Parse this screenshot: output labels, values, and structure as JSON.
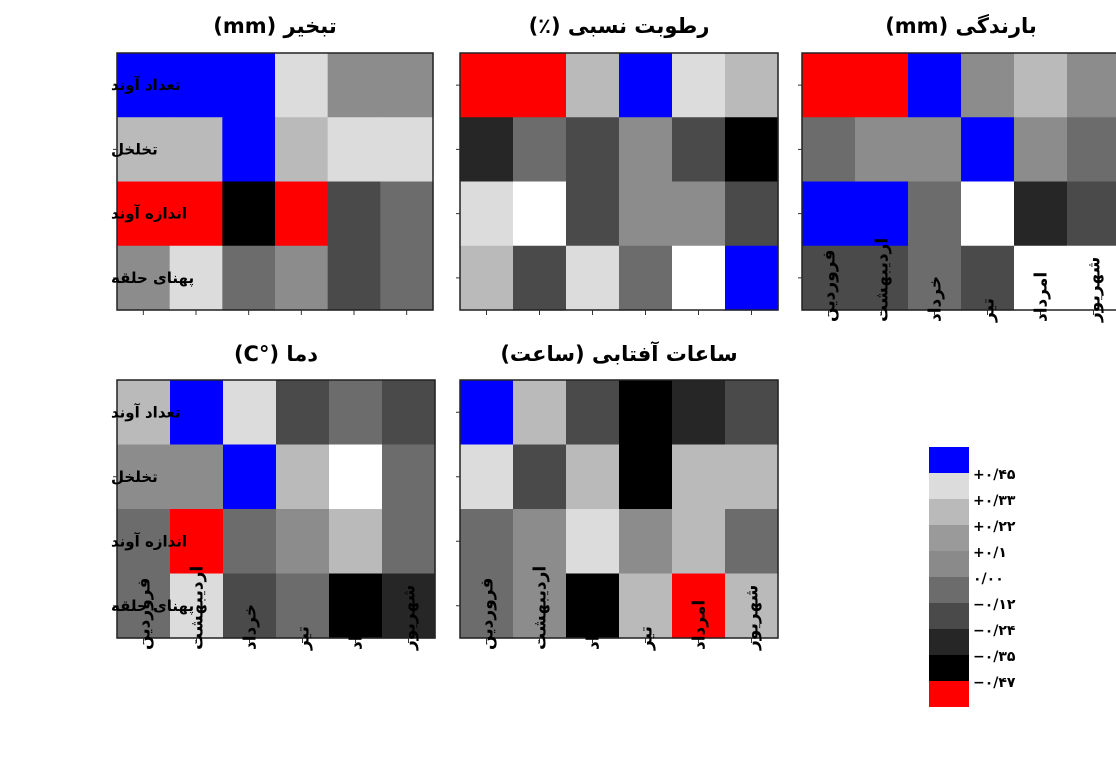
{
  "chart_data": [
    {
      "type": "heatmap",
      "title": "تبخیر (mm)",
      "rows": [
        "تعداد آوند",
        "تخلخل",
        "اندازه آوند",
        "پهنای حلقه"
      ],
      "columns": [
        "فروردین",
        "اردیبهشت",
        "خرداد",
        "تیر",
        "امرداد",
        "شهریور"
      ],
      "values": [
        [
          0.45,
          0.45,
          0.45,
          0.33,
          0.0,
          0.0
        ],
        [
          0.22,
          0.22,
          0.45,
          0.22,
          0.33,
          0.33
        ],
        [
          -0.47,
          -0.47,
          -0.35,
          -0.47,
          -0.24,
          -0.12
        ],
        [
          0.0,
          0.33,
          -0.12,
          0.0,
          -0.24,
          -0.12
        ]
      ]
    },
    {
      "type": "heatmap",
      "title": "رطوبت نسبی (٪)",
      "rows": [
        "تعداد آوند",
        "تخلخل",
        "اندازه آوند",
        "پهنای حلقه"
      ],
      "columns": [
        "فروردین",
        "اردیبهشت",
        "خرداد",
        "تیر",
        "امرداد",
        "شهریور"
      ],
      "values": [
        [
          -0.47,
          -0.47,
          0.22,
          0.45,
          0.33,
          0.22
        ],
        [
          -0.35,
          -0.12,
          -0.24,
          0.0,
          -0.24,
          -0.35
        ],
        [
          0.33,
          0.45,
          -0.24,
          0.0,
          0.0,
          -0.24
        ],
        [
          0.22,
          -0.24,
          0.33,
          -0.12,
          0.45,
          0.45
        ]
      ]
    },
    {
      "type": "heatmap",
      "title": "بارندگی (mm)",
      "rows": [
        "تعداد آوند",
        "تخلخل",
        "اندازه آوند",
        "پهنای حلقه"
      ],
      "columns": [
        "فروردین",
        "اردیبهشت",
        "خرداد",
        "تیر",
        "امرداد",
        "شهریور"
      ],
      "values": [
        [
          -0.47,
          -0.47,
          0.45,
          0.0,
          0.22,
          0.0
        ],
        [
          -0.12,
          0.0,
          0.0,
          0.45,
          0.0,
          -0.12
        ],
        [
          0.45,
          0.45,
          -0.12,
          0.45,
          -0.35,
          -0.24
        ],
        [
          -0.24,
          -0.24,
          -0.12,
          -0.24,
          0.45,
          0.45
        ]
      ]
    },
    {
      "type": "heatmap",
      "title": "دما (°C)",
      "rows": [
        "تعداد آوند",
        "تخلخل",
        "اندازه آوند",
        "پهنای حلقه"
      ],
      "columns": [
        "فروردین",
        "اردیبهشت",
        "خرداد",
        "تیر",
        "امرداد",
        "شهریور"
      ],
      "values": [
        [
          0.22,
          0.45,
          0.33,
          -0.24,
          -0.12,
          -0.24
        ],
        [
          0.0,
          0.0,
          0.45,
          0.22,
          0.45,
          -0.12
        ],
        [
          -0.12,
          -0.47,
          -0.12,
          0.0,
          0.22,
          -0.12
        ],
        [
          -0.12,
          0.33,
          -0.24,
          -0.12,
          -0.35,
          -0.35
        ]
      ]
    },
    {
      "type": "heatmap",
      "title": "ساعات آفتابی (ساعت)",
      "rows": [
        "تعداد آوند",
        "تخلخل",
        "اندازه آوند",
        "پهنای حلقه"
      ],
      "columns": [
        "فروردین",
        "اردیبهشت",
        "خرداد",
        "تیر",
        "امرداد",
        "شهریور"
      ],
      "values": [
        [
          0.45,
          0.22,
          -0.24,
          -0.35,
          -0.35,
          -0.24
        ],
        [
          0.33,
          -0.24,
          0.22,
          -0.35,
          0.22,
          0.22
        ],
        [
          -0.12,
          0.0,
          0.33,
          0.0,
          0.22,
          -0.12
        ],
        [
          -0.12,
          0.0,
          -0.35,
          0.22,
          -0.47,
          0.22
        ]
      ]
    }
  ],
  "legend": {
    "levels": [
      {
        "label": "+۰/۴۵",
        "value": 0.45,
        "color": "#0000ff"
      },
      {
        "label": "+۰/۳۳",
        "value": 0.33,
        "color": "#dcdcdc"
      },
      {
        "label": "+۰/۲۲",
        "value": 0.22,
        "color": "#bababa"
      },
      {
        "label": "+۰/۱",
        "value": 0.1,
        "color": "#9a9a9a"
      },
      {
        "label": "۰/۰۰",
        "value": 0.0,
        "color": "#8a8a8a"
      },
      {
        "label": "−۰/۱۲",
        "value": -0.12,
        "color": "#6c6c6c"
      },
      {
        "label": "−۰/۲۴",
        "value": -0.24,
        "color": "#4a4a4a"
      },
      {
        "label": "−۰/۳۵",
        "value": -0.35,
        "color": "#262626"
      },
      {
        "label": "−۰/۴۷",
        "value": -0.47,
        "color": "#000000"
      }
    ],
    "extreme_color": "#ff0000"
  },
  "colors": {
    "0.45": "#0000ff",
    "0.33": "#dcdcdc",
    "0.22": "#bababa",
    "0.0": "#8c8c8c",
    "-0.12": "#6c6c6c",
    "-0.24": "#4a4a4a",
    "-0.35": "#000000",
    "-0.47": "#ff0000",
    "white": "#ffffff",
    "dark": "#262626"
  }
}
